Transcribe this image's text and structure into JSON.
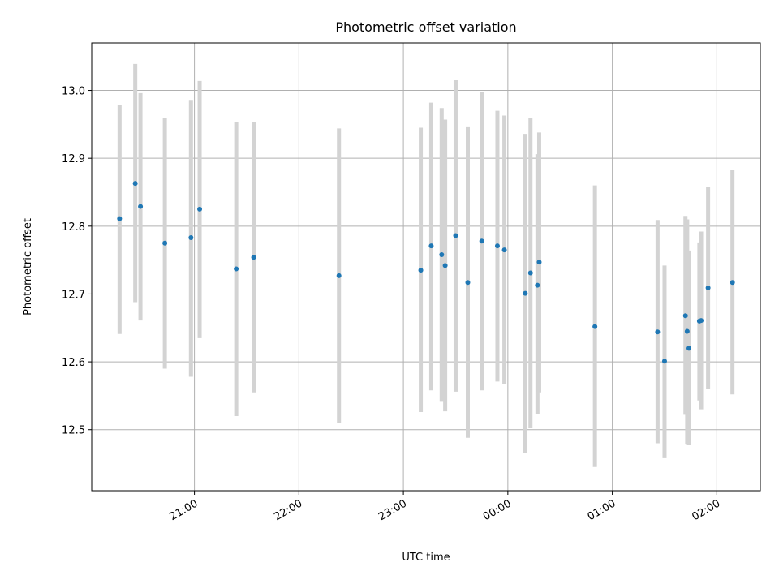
{
  "chart_data": {
    "type": "scatter",
    "title": "Photometric offset variation",
    "xlabel": "UTC time",
    "ylabel": "Photometric offset",
    "grid": true,
    "legend": false,
    "xlim": [
      "2000-01-01T20:01:00",
      "2000-01-02T02:25:00"
    ],
    "ylim": [
      12.41,
      13.07
    ],
    "x_ticks": [
      {
        "label": "21:00",
        "time": "2000-01-01T21:00:00"
      },
      {
        "label": "22:00",
        "time": "2000-01-01T22:00:00"
      },
      {
        "label": "23:00",
        "time": "2000-01-01T23:00:00"
      },
      {
        "label": "00:00",
        "time": "2000-01-02T00:00:00"
      },
      {
        "label": "01:00",
        "time": "2000-01-02T01:00:00"
      },
      {
        "label": "02:00",
        "time": "2000-01-02T02:00:00"
      }
    ],
    "y_ticks": [
      {
        "label": "12.5",
        "value": 12.5
      },
      {
        "label": "12.6",
        "value": 12.6
      },
      {
        "label": "12.7",
        "value": 12.7
      },
      {
        "label": "12.8",
        "value": 12.8
      },
      {
        "label": "12.9",
        "value": 12.9
      },
      {
        "label": "13.0",
        "value": 13.0
      }
    ],
    "colors": {
      "marker": "#1f77b4",
      "errorbar": "#d3d3d3",
      "grid": "#b0b0b0"
    },
    "series": [
      {
        "points": [
          {
            "x": "2000-01-01T20:17:00",
            "y": 12.811,
            "ymin": 12.641,
            "ymax": 12.979
          },
          {
            "x": "2000-01-01T20:26:00",
            "y": 12.863,
            "ymin": 12.688,
            "ymax": 13.039
          },
          {
            "x": "2000-01-01T20:29:00",
            "y": 12.829,
            "ymin": 12.661,
            "ymax": 12.996
          },
          {
            "x": "2000-01-01T20:43:00",
            "y": 12.775,
            "ymin": 12.59,
            "ymax": 12.959
          },
          {
            "x": "2000-01-01T20:58:00",
            "y": 12.783,
            "ymin": 12.578,
            "ymax": 12.986
          },
          {
            "x": "2000-01-01T21:03:00",
            "y": 12.825,
            "ymin": 12.635,
            "ymax": 13.014
          },
          {
            "x": "2000-01-01T21:24:00",
            "y": 12.737,
            "ymin": 12.52,
            "ymax": 12.954
          },
          {
            "x": "2000-01-01T21:34:00",
            "y": 12.754,
            "ymin": 12.555,
            "ymax": 12.954
          },
          {
            "x": "2000-01-01T22:23:00",
            "y": 12.727,
            "ymin": 12.51,
            "ymax": 12.944
          },
          {
            "x": "2000-01-01T23:10:00",
            "y": 12.735,
            "ymin": 12.526,
            "ymax": 12.945
          },
          {
            "x": "2000-01-01T23:16:00",
            "y": 12.771,
            "ymin": 12.558,
            "ymax": 12.982
          },
          {
            "x": "2000-01-01T23:22:00",
            "y": 12.758,
            "ymin": 12.541,
            "ymax": 12.974
          },
          {
            "x": "2000-01-01T23:24:00",
            "y": 12.742,
            "ymin": 12.527,
            "ymax": 12.957
          },
          {
            "x": "2000-01-01T23:30:00",
            "y": 12.786,
            "ymin": 12.556,
            "ymax": 13.015
          },
          {
            "x": "2000-01-01T23:37:00",
            "y": 12.717,
            "ymin": 12.488,
            "ymax": 12.947
          },
          {
            "x": "2000-01-01T23:45:00",
            "y": 12.778,
            "ymin": 12.558,
            "ymax": 12.997
          },
          {
            "x": "2000-01-01T23:54:00",
            "y": 12.771,
            "ymin": 12.571,
            "ymax": 12.97
          },
          {
            "x": "2000-01-01T23:58:00",
            "y": 12.765,
            "ymin": 12.567,
            "ymax": 12.963
          },
          {
            "x": "2000-01-02T00:10:00",
            "y": 12.701,
            "ymin": 12.466,
            "ymax": 12.936
          },
          {
            "x": "2000-01-02T00:13:00",
            "y": 12.731,
            "ymin": 12.502,
            "ymax": 12.96
          },
          {
            "x": "2000-01-02T00:17:00",
            "y": 12.713,
            "ymin": 12.523,
            "ymax": 12.906
          },
          {
            "x": "2000-01-02T00:18:00",
            "y": 12.747,
            "ymin": 12.555,
            "ymax": 12.938
          },
          {
            "x": "2000-01-02T00:50:00",
            "y": 12.652,
            "ymin": 12.445,
            "ymax": 12.86
          },
          {
            "x": "2000-01-02T01:26:00",
            "y": 12.644,
            "ymin": 12.48,
            "ymax": 12.809
          },
          {
            "x": "2000-01-02T01:30:00",
            "y": 12.601,
            "ymin": 12.458,
            "ymax": 12.742
          },
          {
            "x": "2000-01-02T01:42:00",
            "y": 12.668,
            "ymin": 12.522,
            "ymax": 12.815
          },
          {
            "x": "2000-01-02T01:43:00",
            "y": 12.645,
            "ymin": 12.478,
            "ymax": 12.81
          },
          {
            "x": "2000-01-02T01:44:00",
            "y": 12.62,
            "ymin": 12.477,
            "ymax": 12.764
          },
          {
            "x": "2000-01-02T01:50:00",
            "y": 12.66,
            "ymin": 12.543,
            "ymax": 12.776
          },
          {
            "x": "2000-01-02T01:51:00",
            "y": 12.661,
            "ymin": 12.53,
            "ymax": 12.792
          },
          {
            "x": "2000-01-02T01:55:00",
            "y": 12.709,
            "ymin": 12.56,
            "ymax": 12.858
          },
          {
            "x": "2000-01-02T02:09:00",
            "y": 12.717,
            "ymin": 12.552,
            "ymax": 12.883
          }
        ]
      }
    ]
  }
}
